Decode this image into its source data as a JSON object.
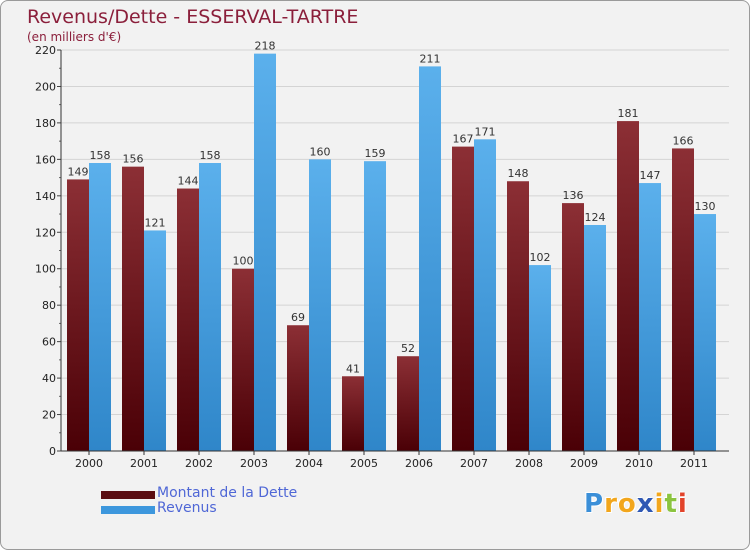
{
  "chart_data": {
    "type": "bar",
    "title": "Revenus/Dette - ESSERVAL-TARTRE",
    "subtitle": "(en milliers d'€)",
    "categories": [
      "2000",
      "2001",
      "2002",
      "2003",
      "2004",
      "2005",
      "2006",
      "2007",
      "2008",
      "2009",
      "2010",
      "2011"
    ],
    "series": [
      {
        "name": "Montant de la Dette",
        "color": "#7d1d23",
        "values": [
          149,
          156,
          144,
          100,
          69,
          41,
          52,
          167,
          148,
          136,
          181,
          166
        ]
      },
      {
        "name": "Revenus",
        "color": "#4a9fe0",
        "values": [
          158,
          121,
          158,
          218,
          160,
          159,
          211,
          171,
          102,
          124,
          147,
          130
        ]
      }
    ],
    "ylim": [
      0,
      220
    ],
    "yticks": [
      0,
      20,
      40,
      60,
      80,
      100,
      120,
      140,
      160,
      180,
      200,
      220
    ],
    "grid": true,
    "legend": "bottom-left"
  },
  "logo": {
    "letters": [
      "P",
      "r",
      "o",
      "x",
      "i",
      "t",
      "i"
    ],
    "colors": [
      "#3b8fd8",
      "#f2a61c",
      "#f2a61c",
      "#2f58b4",
      "#f2a61c",
      "#8bc43f",
      "#e2432a"
    ]
  }
}
